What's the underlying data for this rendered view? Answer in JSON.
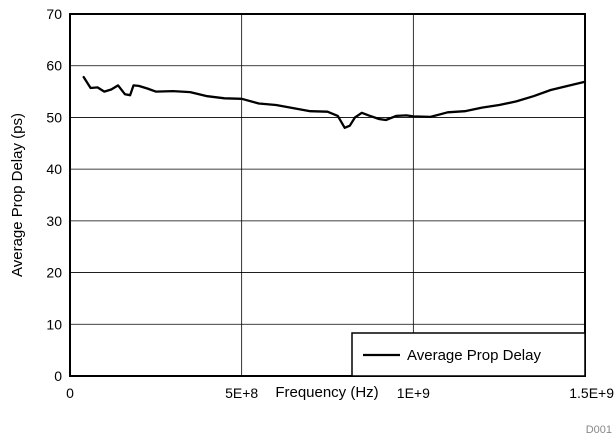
{
  "chart_data": {
    "type": "line",
    "title": "",
    "xlabel": "Frequency (Hz)",
    "ylabel": "Average Prop Delay (ps)",
    "xlim": [
      0,
      1500000000
    ],
    "ylim": [
      0,
      70
    ],
    "xticks": [
      0,
      500000000,
      1000000000,
      1500000000
    ],
    "xtick_labels": [
      "0",
      "5E+8",
      "1E+9",
      "1.5E+9"
    ],
    "yticks": [
      0,
      10,
      20,
      30,
      40,
      50,
      60,
      70
    ],
    "ytick_labels": [
      "0",
      "10",
      "20",
      "30",
      "40",
      "50",
      "60",
      "70"
    ],
    "grid": true,
    "legend_position": "bottom-right",
    "series": [
      {
        "name": "Average Prop Delay",
        "color": "#000000",
        "x": [
          40000000,
          60000000,
          80000000,
          100000000,
          120000000,
          140000000,
          160000000,
          175000000,
          185000000,
          200000000,
          225000000,
          250000000,
          300000000,
          350000000,
          400000000,
          450000000,
          500000000,
          550000000,
          600000000,
          650000000,
          700000000,
          750000000,
          780000000,
          800000000,
          815000000,
          830000000,
          850000000,
          870000000,
          900000000,
          920000000,
          950000000,
          980000000,
          1000000000,
          1050000000,
          1100000000,
          1150000000,
          1200000000,
          1250000000,
          1300000000,
          1350000000,
          1400000000,
          1450000000,
          1500000000
        ],
        "values": [
          57.8,
          55.7,
          55.8,
          55.0,
          55.4,
          56.2,
          54.5,
          54.3,
          56.2,
          56.1,
          55.6,
          55.0,
          55.1,
          54.9,
          54.1,
          53.7,
          53.6,
          52.7,
          52.4,
          51.8,
          51.2,
          51.1,
          50.3,
          48.0,
          48.4,
          50.0,
          50.9,
          50.4,
          49.7,
          49.5,
          50.3,
          50.4,
          50.2,
          50.1,
          51.0,
          51.2,
          51.9,
          52.4,
          53.1,
          54.1,
          55.3,
          56.1,
          56.9
        ]
      }
    ]
  },
  "footnote": "D001"
}
